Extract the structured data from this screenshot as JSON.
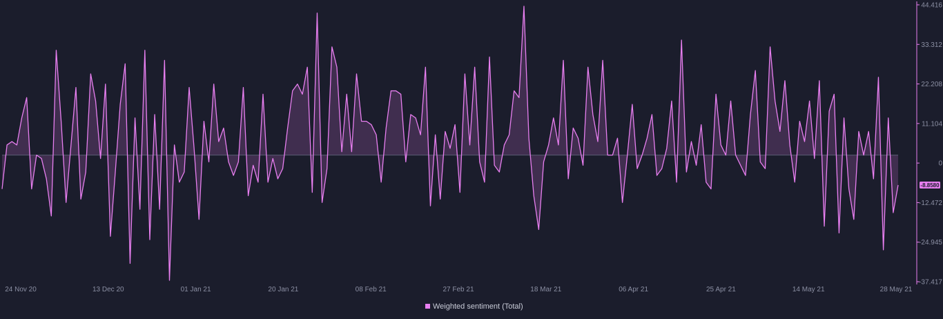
{
  "chart_data": {
    "type": "area",
    "title": "",
    "xlabel": "",
    "ylabel": "",
    "ylim": [
      -37.417,
      44.416
    ],
    "y_ticks": [
      "44.416",
      "33.312",
      "22.208",
      "11.104",
      "0",
      "-12.472",
      "-24.945",
      "-37.417"
    ],
    "x_ticks": [
      "24 Nov 20",
      "13 Dec 20",
      "01 Jan 21",
      "20 Jan 21",
      "08 Feb 21",
      "27 Feb 21",
      "18 Mar 21",
      "06 Apr 21",
      "25 Apr 21",
      "14 May 21",
      "28 May 21"
    ],
    "x_range": [
      "2020-11-24",
      "2021-05-28"
    ],
    "last_value_label": "-8.8580",
    "series": [
      {
        "name": "Weighted sentiment (Total)",
        "color": "#e87ff0",
        "values": [
          -10,
          3,
          4,
          3,
          11,
          17,
          -10,
          0,
          -1,
          -7,
          -18,
          31,
          10,
          -14,
          3,
          20,
          -13,
          -5,
          24,
          16,
          -1,
          21,
          -24,
          -5,
          15,
          27,
          -32,
          11,
          -16,
          31,
          -25,
          12,
          -16,
          28,
          -37,
          3,
          -8,
          -5,
          20,
          2,
          -19,
          10,
          -2,
          21,
          4,
          8,
          -2,
          -6,
          -2,
          20,
          -12,
          -3,
          -8,
          18,
          -8,
          -1,
          -7,
          -4,
          8,
          19,
          21,
          18,
          26,
          -11,
          42,
          -14,
          -4,
          32,
          26,
          1,
          18,
          1,
          24,
          10,
          10,
          9,
          6,
          -8,
          8,
          19,
          19,
          18,
          -2,
          12,
          11,
          6,
          26,
          -15,
          6,
          -13,
          7,
          2,
          9,
          -11,
          24,
          3,
          26,
          -2,
          -8,
          29,
          -3,
          -5,
          3,
          6,
          19,
          17,
          44,
          5,
          -12,
          -22,
          -2,
          3,
          11,
          3,
          28,
          -7,
          8,
          5,
          -3,
          26,
          12,
          4,
          28,
          0,
          0,
          5,
          -14,
          0,
          15,
          -4,
          0,
          5,
          12,
          -6,
          -4,
          2,
          16,
          -8,
          34,
          -5,
          4,
          -3,
          9,
          -8,
          -10,
          18,
          3,
          0,
          16,
          0,
          -3,
          -6,
          12,
          25,
          -2,
          -4,
          32,
          16,
          7,
          22,
          3,
          -8,
          10,
          4,
          16,
          -1,
          22,
          -21,
          13,
          18,
          -23,
          11,
          -10,
          -19,
          7,
          0,
          7,
          -7,
          23,
          -28,
          11,
          -17,
          -8.858
        ]
      }
    ],
    "legend_position": "bottom-center",
    "grid": false
  }
}
